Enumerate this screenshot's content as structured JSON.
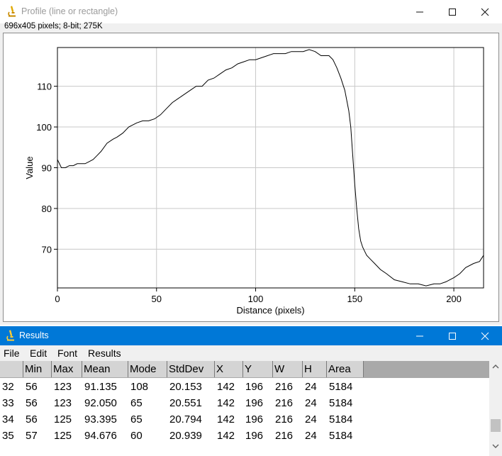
{
  "profile_window": {
    "title": "Profile (line or rectangle)",
    "info": "696x405 pixels; 8-bit; 275K",
    "icon": "microscope-icon",
    "controls": [
      "minimize-icon",
      "maximize-icon",
      "close-icon"
    ]
  },
  "chart_data": {
    "type": "line",
    "xlabel": "Distance (pixels)",
    "ylabel": "Value",
    "xlim": [
      0,
      215
    ],
    "ylim": [
      60.5,
      119.5
    ],
    "xticks": [
      0,
      50,
      100,
      150,
      200
    ],
    "yticks": [
      70,
      80,
      90,
      100,
      110
    ],
    "grid": true,
    "series": [
      {
        "x": [
          0,
          2,
          4,
          6,
          8,
          10,
          12,
          14,
          16,
          18,
          20,
          22,
          25,
          28,
          30,
          33,
          36,
          38,
          40,
          43,
          46,
          49,
          52,
          55,
          58,
          61,
          64,
          67,
          70,
          73,
          76,
          79,
          82,
          85,
          88,
          91,
          94,
          97,
          100,
          103,
          106,
          109,
          112,
          115,
          118,
          121,
          124,
          127,
          130,
          133,
          135,
          137,
          139,
          141,
          143,
          145,
          147,
          148,
          149,
          150,
          151,
          152,
          153,
          154,
          155,
          156,
          158,
          160,
          163,
          166,
          170,
          174,
          178,
          182,
          186,
          190,
          193,
          196,
          200,
          203,
          206,
          210,
          213,
          215
        ],
        "y": [
          92,
          90,
          90,
          90.5,
          90.5,
          91,
          91,
          91,
          91.5,
          92,
          93,
          94,
          96,
          97,
          97.5,
          98.5,
          100,
          100.5,
          101,
          101.5,
          101.5,
          102,
          103,
          104.5,
          106,
          107,
          108,
          109,
          110,
          110,
          111.5,
          112,
          113,
          114,
          114.5,
          115.5,
          116,
          116.5,
          116.5,
          117,
          117.5,
          118,
          118,
          118,
          118.5,
          118.5,
          118.5,
          119,
          118.5,
          117.5,
          117.5,
          117.5,
          116.5,
          114.5,
          112,
          109,
          104,
          100,
          93,
          86,
          80,
          75,
          72,
          70.5,
          69.5,
          68.5,
          67.5,
          66.5,
          65,
          64,
          62.5,
          62,
          61.5,
          61.5,
          61,
          61.5,
          61.5,
          62,
          63,
          64,
          65.5,
          66.5,
          67,
          68.5
        ]
      }
    ]
  },
  "results_window": {
    "title": "Results",
    "icon": "microscope-icon",
    "menu": [
      "File",
      "Edit",
      "Font",
      "Results"
    ],
    "columns": [
      "",
      "Min",
      "Max",
      "Mean",
      "Mode",
      "StdDev",
      "X",
      "Y",
      "W",
      "H",
      "Area"
    ],
    "rows": [
      [
        "32",
        "56",
        "123",
        "91.135",
        "108",
        "20.153",
        "142",
        "196",
        "216",
        "24",
        "5184"
      ],
      [
        "33",
        "56",
        "123",
        "92.050",
        "65",
        "20.551",
        "142",
        "196",
        "216",
        "24",
        "5184"
      ],
      [
        "34",
        "56",
        "125",
        "93.395",
        "65",
        "20.794",
        "142",
        "196",
        "216",
        "24",
        "5184"
      ],
      [
        "35",
        "57",
        "125",
        "94.676",
        "60",
        "20.939",
        "142",
        "196",
        "216",
        "24",
        "5184"
      ]
    ]
  }
}
